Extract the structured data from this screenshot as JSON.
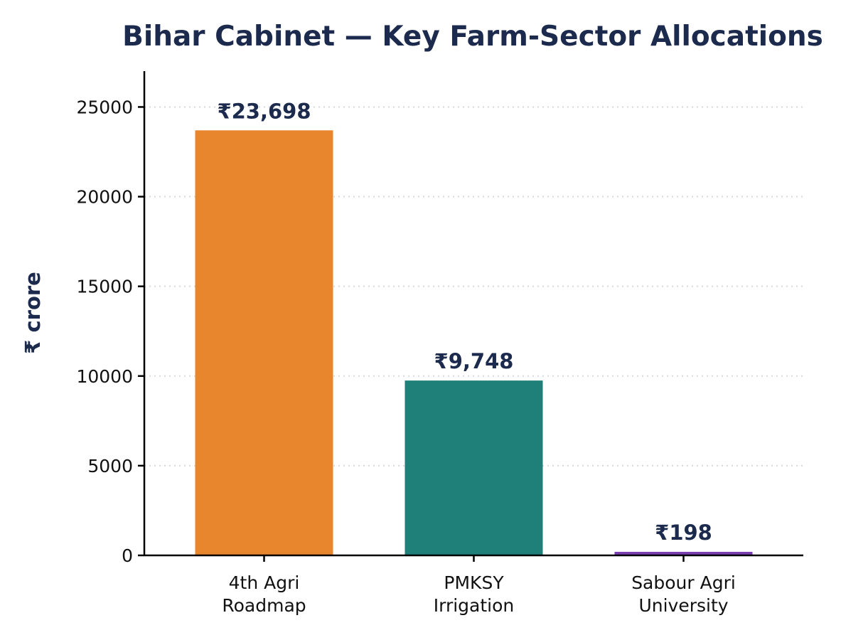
{
  "chart_data": {
    "type": "bar",
    "title": "Bihar Cabinet — Key Farm-Sector Allocations",
    "xlabel": "",
    "ylabel": "₹ crore",
    "ylim": [
      0,
      27000
    ],
    "yticks": [
      "0",
      "5000",
      "10000",
      "15000",
      "20000",
      "25000"
    ],
    "ytick_values": [
      0,
      5000,
      10000,
      15000,
      20000,
      25000
    ],
    "grid": "y-dotted",
    "categories": [
      [
        "4th Agri",
        "Roadmap"
      ],
      [
        "PMKSY",
        "Irrigation"
      ],
      [
        "Sabour Agri",
        "University"
      ]
    ],
    "values": [
      23698,
      9748,
      198
    ],
    "value_labels": [
      "₹23,698",
      "₹9,748",
      "₹198"
    ],
    "colors": [
      "#e8862e",
      "#1f7f79",
      "#7b3fb0"
    ],
    "text_color": "#1c2b4d"
  }
}
